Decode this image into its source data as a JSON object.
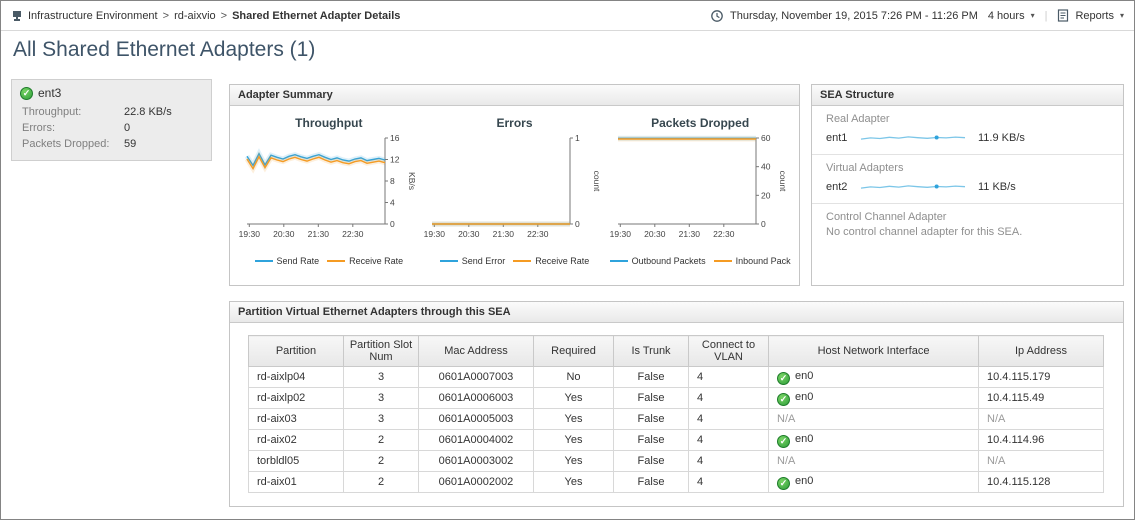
{
  "icons": {
    "check_glyph": "✓",
    "caret_glyph": "▾"
  },
  "topbar": {
    "breadcrumb": {
      "items": [
        "Infrastructure Environment",
        "rd-aixvio",
        "Shared Ethernet Adapter Details"
      ],
      "separator": ">"
    },
    "time_range": {
      "text": "Thursday, November 19, 2015 7:26 PM - 11:26 PM",
      "duration": "4 hours"
    },
    "reports": {
      "label": "Reports"
    }
  },
  "page_title": "All Shared Ethernet Adapters (1)",
  "adapter_card": {
    "name": "ent3",
    "stats": [
      {
        "label": "Throughput:",
        "value": "22.8 KB/s"
      },
      {
        "label": "Errors:",
        "value": "0"
      },
      {
        "label": "Packets Dropped:",
        "value": "59"
      }
    ]
  },
  "adapter_summary": {
    "title": "Adapter Summary"
  },
  "sea_structure": {
    "title": "SEA Structure",
    "sections": [
      {
        "label": "Real Adapter",
        "name": "ent1",
        "rate": "11.9 KB/s",
        "spark": [
          11.2,
          11.8,
          11.5,
          12.1,
          11.7,
          12.3,
          11.9,
          11.6,
          12.0,
          11.8,
          12.2,
          11.9
        ]
      },
      {
        "label": "Virtual Adapters",
        "name": "ent2",
        "rate": "11 KB/s",
        "spark": [
          10.4,
          11.0,
          10.7,
          11.3,
          10.9,
          11.5,
          11.1,
          10.8,
          11.2,
          11.0,
          11.4,
          11.1
        ]
      },
      {
        "label": "Control Channel Adapter",
        "message": "No control channel adapter for this SEA."
      }
    ]
  },
  "partition_table": {
    "title": "Partition Virtual Ethernet Adapters through this SEA",
    "columns": [
      "Partition",
      "Partition Slot Num",
      "Mac Address",
      "Required",
      "Is Trunk",
      "Connect to VLAN",
      "Host Network Interface",
      "Ip Address"
    ],
    "rows": [
      {
        "partition": "rd-aixlp04",
        "slot": "3",
        "mac": "0601A0007003",
        "required": "No",
        "is_trunk": "False",
        "vlan": "4",
        "host_iface": "en0",
        "host_iface_status": "ok",
        "ip": "10.4.115.179"
      },
      {
        "partition": "rd-aixlp02",
        "slot": "3",
        "mac": "0601A0006003",
        "required": "Yes",
        "is_trunk": "False",
        "vlan": "4",
        "host_iface": "en0",
        "host_iface_status": "ok",
        "ip": "10.4.115.49"
      },
      {
        "partition": "rd-aix03",
        "slot": "3",
        "mac": "0601A0005003",
        "required": "Yes",
        "is_trunk": "False",
        "vlan": "4",
        "host_iface": "N/A",
        "host_iface_status": "na",
        "ip": "N/A"
      },
      {
        "partition": "rd-aix02",
        "slot": "2",
        "mac": "0601A0004002",
        "required": "Yes",
        "is_trunk": "False",
        "vlan": "4",
        "host_iface": "en0",
        "host_iface_status": "ok",
        "ip": "10.4.114.96"
      },
      {
        "partition": "torbldl05",
        "slot": "2",
        "mac": "0601A0003002",
        "required": "Yes",
        "is_trunk": "False",
        "vlan": "4",
        "host_iface": "N/A",
        "host_iface_status": "na",
        "ip": "N/A"
      },
      {
        "partition": "rd-aix01",
        "slot": "2",
        "mac": "0601A0002002",
        "required": "Yes",
        "is_trunk": "False",
        "vlan": "4",
        "host_iface": "en0",
        "host_iface_status": "ok",
        "ip": "10.4.115.128"
      }
    ]
  },
  "chart_data": [
    {
      "type": "line",
      "title": "Throughput",
      "ylabel": "KB/s",
      "ylim": [
        0,
        16
      ],
      "yticks": [
        0,
        4,
        8,
        12,
        16
      ],
      "xlim": [
        0,
        240
      ],
      "xticks": [
        {
          "x": 4,
          "label": "19:30"
        },
        {
          "x": 64,
          "label": "20:30"
        },
        {
          "x": 124,
          "label": "21:30"
        },
        {
          "x": 184,
          "label": "22:30"
        }
      ],
      "series": [
        {
          "name": "Send Rate",
          "color": "#2fa3dc",
          "values": [
            12.6,
            10.9,
            13.1,
            11.0,
            12.8,
            12.4,
            12.1,
            12.6,
            12.9,
            12.5,
            12.2,
            12.6,
            12.9,
            12.4,
            12.0,
            12.3,
            11.9,
            11.7,
            12.1,
            12.3,
            11.8,
            12.0,
            12.2,
            11.9
          ]
        },
        {
          "name": "Receive Rate",
          "color": "#f59b23",
          "values": [
            12.1,
            10.3,
            12.5,
            10.5,
            12.3,
            11.9,
            11.6,
            12.1,
            12.4,
            12.0,
            11.7,
            12.1,
            12.4,
            11.9,
            11.5,
            11.8,
            11.4,
            11.2,
            11.6,
            11.8,
            11.3,
            11.5,
            11.7,
            11.4
          ]
        }
      ]
    },
    {
      "type": "line",
      "title": "Errors",
      "ylabel": "count",
      "ylim": [
        0,
        1
      ],
      "yticks": [
        0,
        1
      ],
      "xlim": [
        0,
        240
      ],
      "xticks": [
        {
          "x": 4,
          "label": "19:30"
        },
        {
          "x": 64,
          "label": "20:30"
        },
        {
          "x": 124,
          "label": "21:30"
        },
        {
          "x": 184,
          "label": "22:30"
        }
      ],
      "series": [
        {
          "name": "Send Error",
          "color": "#2fa3dc",
          "values": [
            0,
            0,
            0,
            0,
            0,
            0,
            0,
            0,
            0,
            0,
            0,
            0,
            0,
            0,
            0,
            0,
            0,
            0,
            0,
            0,
            0,
            0,
            0,
            0
          ]
        },
        {
          "name": "Receive Rate",
          "color": "#f59b23",
          "values": [
            0,
            0,
            0,
            0,
            0,
            0,
            0,
            0,
            0,
            0,
            0,
            0,
            0,
            0,
            0,
            0,
            0,
            0,
            0,
            0,
            0,
            0,
            0,
            0
          ]
        }
      ]
    },
    {
      "type": "line",
      "title": "Packets Dropped",
      "ylabel": "count",
      "ylim": [
        0,
        60
      ],
      "yticks": [
        0,
        20,
        40,
        60
      ],
      "xlim": [
        0,
        240
      ],
      "xticks": [
        {
          "x": 4,
          "label": "19:30"
        },
        {
          "x": 64,
          "label": "20:30"
        },
        {
          "x": 124,
          "label": "21:30"
        },
        {
          "x": 184,
          "label": "22:30"
        }
      ],
      "series": [
        {
          "name": "Outbound Packets",
          "color": "#2fa3dc",
          "values": [
            59.8,
            59.8,
            59.8,
            59.8,
            59.8,
            59.8,
            59.8,
            59.8,
            59.8,
            59.8,
            59.8,
            59.8,
            59.8,
            59.8,
            59.8,
            59.8,
            59.8,
            59.8,
            59.8,
            59.8,
            59.8,
            59.8,
            59.8,
            59.8
          ]
        },
        {
          "name": "Inbound Pack",
          "color": "#f59b23",
          "values": [
            59.3,
            59.3,
            59.3,
            59.3,
            59.3,
            59.3,
            59.3,
            59.3,
            59.3,
            59.3,
            59.3,
            59.3,
            59.3,
            59.3,
            59.3,
            59.3,
            59.3,
            59.3,
            59.3,
            59.3,
            59.3,
            59.3,
            59.3,
            59.3
          ]
        }
      ]
    }
  ]
}
